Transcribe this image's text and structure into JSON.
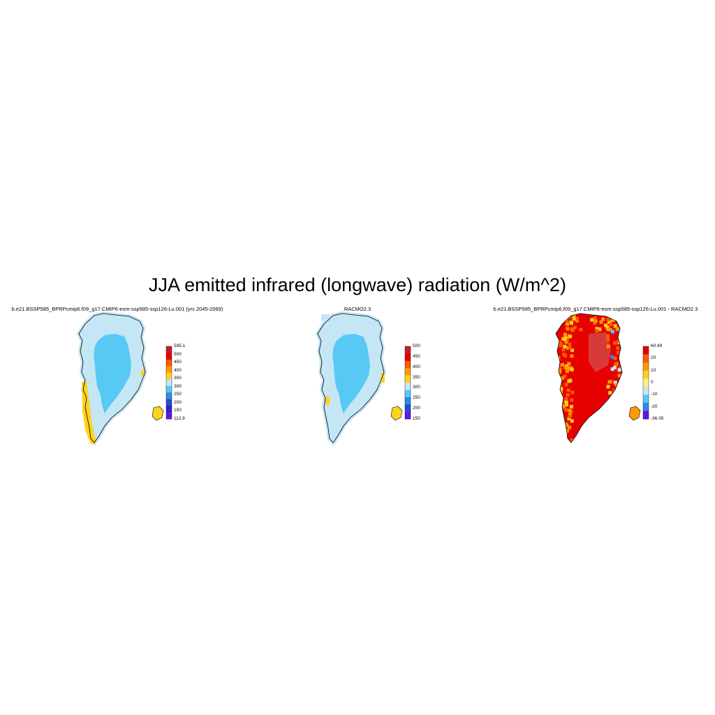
{
  "figure": {
    "title": "JJA emitted infrared (longwave) radiation (W/m^2)"
  },
  "panels": [
    {
      "title": "b.e21.BSSP585_BPRPcmip6.f09_g17.CMIP6-esm-ssp585-ssp126-Lu.001 (yrs 2045-2069)",
      "colorbar": {
        "labels": [
          "595.1",
          "500",
          "450",
          "400",
          "350",
          "300",
          "250",
          "200",
          "150",
          "112.9"
        ],
        "colors": [
          "#c81e1e",
          "#e60000",
          "#ff5a00",
          "#ff9a00",
          "#ffd21e",
          "#c4e6f5",
          "#58c8f5",
          "#2a8ce6",
          "#2050d0",
          "#3020d8",
          "#6414f0"
        ]
      },
      "scheme": "abs1"
    },
    {
      "title": "RACMO2.3",
      "colorbar": {
        "labels": [
          "500",
          "450",
          "400",
          "350",
          "300",
          "250",
          "200",
          "150"
        ],
        "colors": [
          "#c81e1e",
          "#e60000",
          "#ff5a00",
          "#ff9a00",
          "#ffd21e",
          "#c4e6f5",
          "#58c8f5",
          "#2a8ce6",
          "#2050d0",
          "#6414f0"
        ]
      },
      "scheme": "abs2"
    },
    {
      "title": "b.e21.BSSP585_BPRPcmip6.f09_g17.CMIP6-esm-ssp585-ssp126-Lu.001 - RACMO2.3",
      "colorbar": {
        "labels": [
          "60.49",
          "20",
          "10",
          "0",
          "-10",
          "-20",
          "-36.05"
        ],
        "colors": [
          "#e60000",
          "#ff5a00",
          "#ff9a00",
          "#ffd21e",
          "#ffee80",
          "#c4e6f5",
          "#58c8f5",
          "#2a8ce6",
          "#6414f0"
        ]
      },
      "scheme": "diff"
    }
  ]
}
